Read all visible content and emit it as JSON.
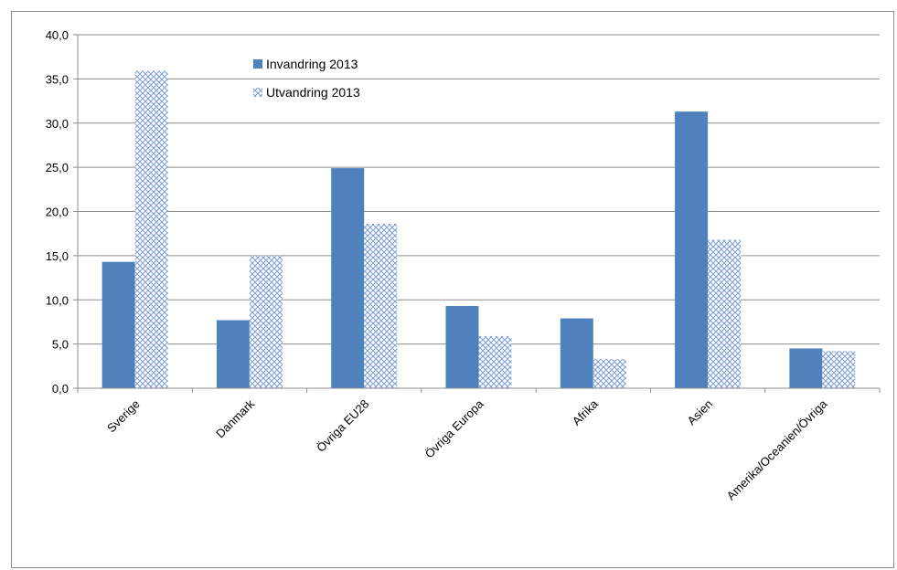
{
  "chart_data": {
    "type": "bar",
    "categories": [
      "Sverige",
      "Danmark",
      "Övriga EU28",
      "Övriga Europa",
      "Afrika",
      "Asien",
      "Amerika/Oceanien/Övriga"
    ],
    "series": [
      {
        "name": "Invandring 2013",
        "values": [
          14.3,
          7.7,
          24.9,
          9.3,
          7.9,
          31.3,
          4.5
        ],
        "color": "#4f81bd",
        "pattern": "solid"
      },
      {
        "name": "Utvandring 2013",
        "values": [
          35.9,
          15.0,
          18.6,
          5.9,
          3.3,
          16.8,
          4.2
        ],
        "color": "#4f81bd",
        "pattern": "crosshatch"
      }
    ],
    "yticks": [
      "0,0",
      "5,0",
      "10,0",
      "15,0",
      "20,0",
      "25,0",
      "30,0",
      "35,0",
      "40,0"
    ],
    "ylim": [
      0,
      40
    ],
    "grid": true,
    "legend_position": "top-left-inside"
  }
}
